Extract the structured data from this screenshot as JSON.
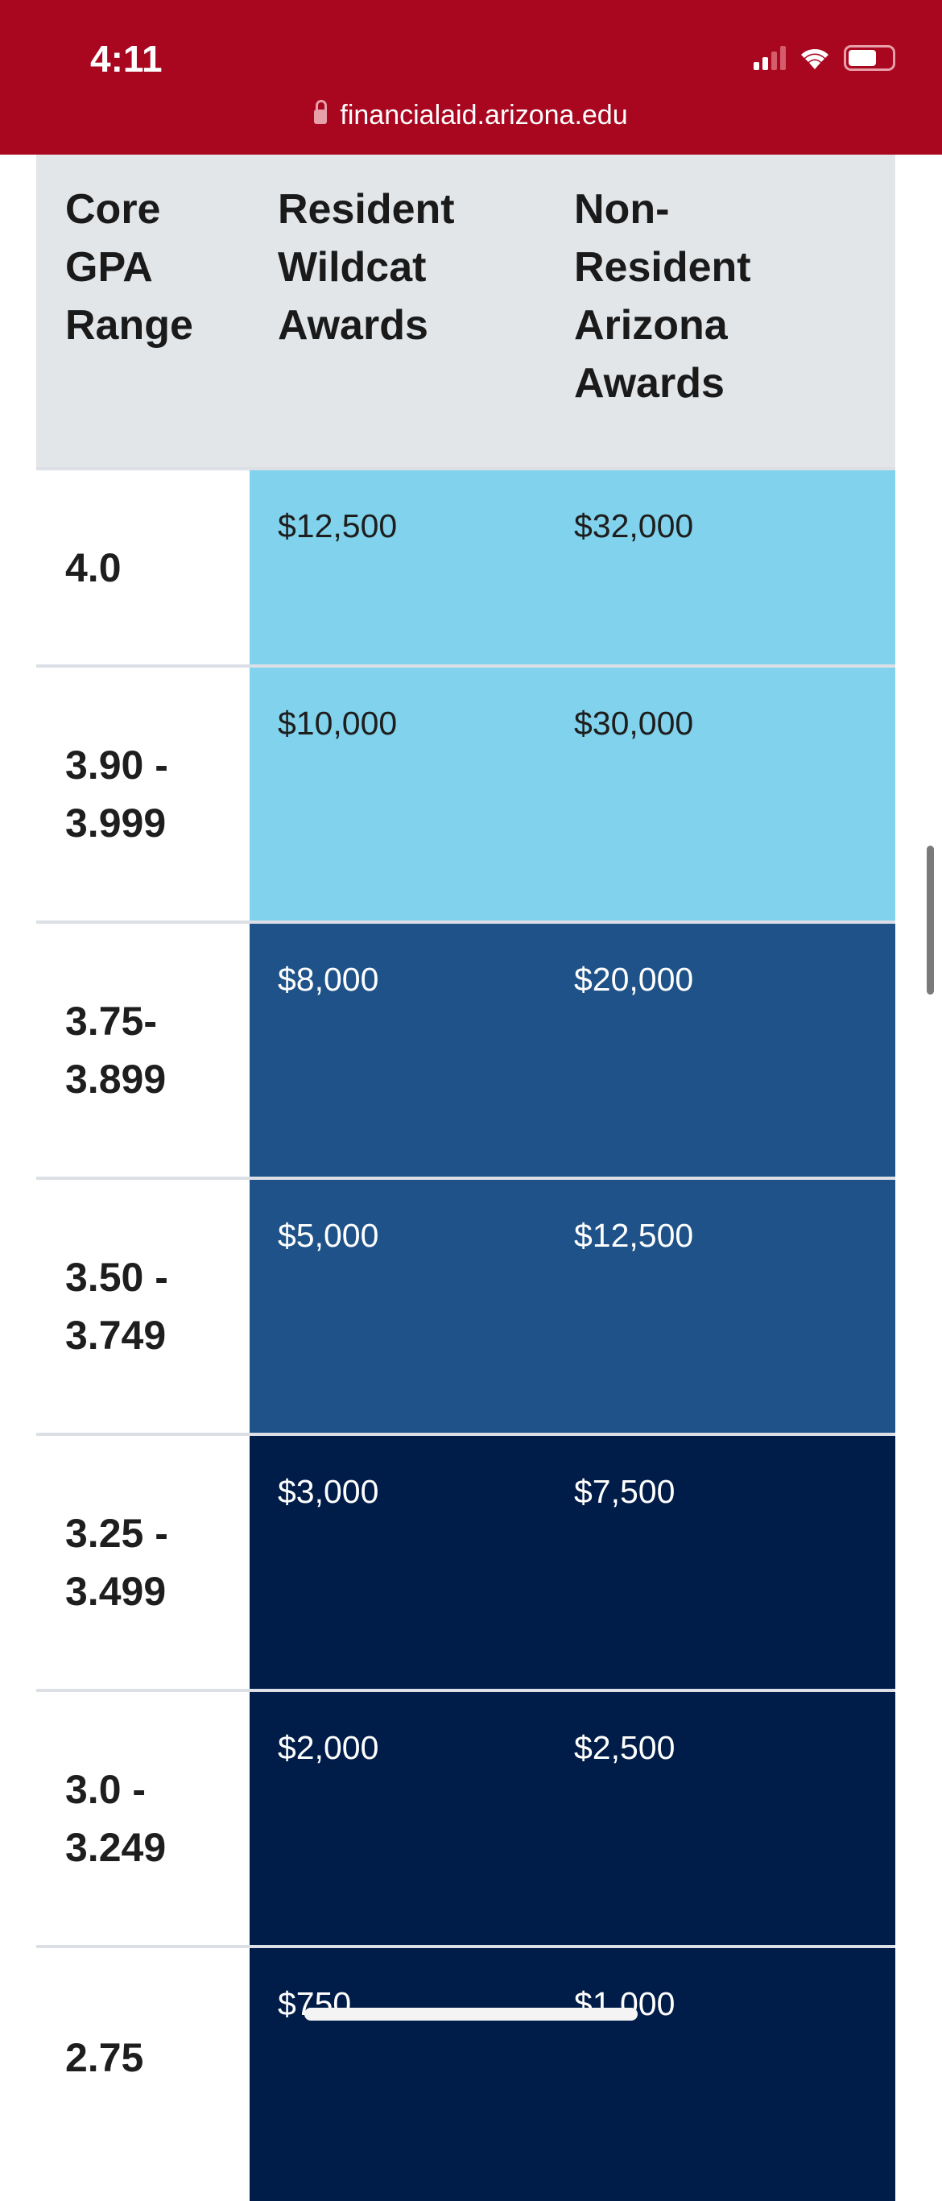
{
  "status_bar": {
    "time": "4:11",
    "url": "financialaid.arizona.edu",
    "icons": [
      "cellular-signal-icon",
      "wifi-icon",
      "battery-icon",
      "lock-icon"
    ]
  },
  "colors": {
    "browser_bar": "#A9061F",
    "tier_light": "#81D2EC",
    "tier_mid": "#1E5288",
    "tier_dark": "#001C48",
    "header_bg": "#E2E6E9"
  },
  "table": {
    "headers": [
      "Core GPA Range",
      "Resident Wildcat Awards",
      "Non-Resident Arizona Awards"
    ],
    "rows": [
      {
        "gpa": "4.0",
        "resident": "$12,500",
        "nonresident": "$32,000",
        "tier": "light"
      },
      {
        "gpa": "3.90 - 3.999",
        "resident": "$10,000",
        "nonresident": "$30,000",
        "tier": "light"
      },
      {
        "gpa": "3.75- 3.899",
        "resident": "$8,000",
        "nonresident": "$20,000",
        "tier": "mid"
      },
      {
        "gpa": "3.50 - 3.749",
        "resident": "$5,000",
        "nonresident": "$12,500",
        "tier": "mid"
      },
      {
        "gpa": "3.25 - 3.499",
        "resident": "$3,000",
        "nonresident": "$7,500",
        "tier": "dark"
      },
      {
        "gpa": "3.0 - 3.249",
        "resident": "$2,000",
        "nonresident": "$2,500",
        "tier": "dark"
      },
      {
        "gpa": "2.75",
        "resident": "$750",
        "nonresident": "$1,000",
        "tier": "dark"
      }
    ]
  }
}
